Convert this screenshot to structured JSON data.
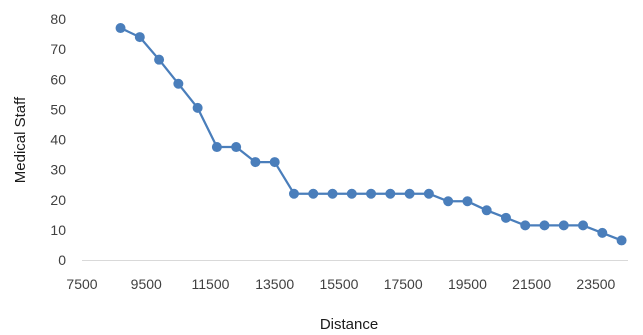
{
  "chart_data": {
    "type": "line",
    "title": "",
    "xlabel": "Distance",
    "ylabel": "Medical Staff",
    "xlim": [
      7500,
      24500
    ],
    "ylim": [
      0,
      80
    ],
    "x_ticks": [
      7500,
      9500,
      11500,
      13500,
      15500,
      17500,
      19500,
      21500,
      23500
    ],
    "y_ticks": [
      0,
      10,
      20,
      30,
      40,
      50,
      60,
      70,
      80
    ],
    "grid": false,
    "legend": "none",
    "series": [
      {
        "color": "#4a7ebb",
        "marker": "circle",
        "x": [
          8700,
          9300,
          9900,
          10500,
          11100,
          11700,
          12300,
          12900,
          13500,
          14100,
          14700,
          15300,
          15900,
          16500,
          17100,
          17700,
          18300,
          18900,
          19500,
          20100,
          20700,
          21300,
          21900,
          22500,
          23100,
          23700,
          24300
        ],
        "y": [
          77,
          74,
          66.5,
          58.5,
          50.5,
          37.5,
          37.5,
          32.5,
          32.5,
          22,
          22,
          22,
          22,
          22,
          22,
          22,
          22,
          19.5,
          19.5,
          16.5,
          14,
          11.5,
          11.5,
          11.5,
          11.5,
          9,
          6.5
        ]
      }
    ]
  }
}
